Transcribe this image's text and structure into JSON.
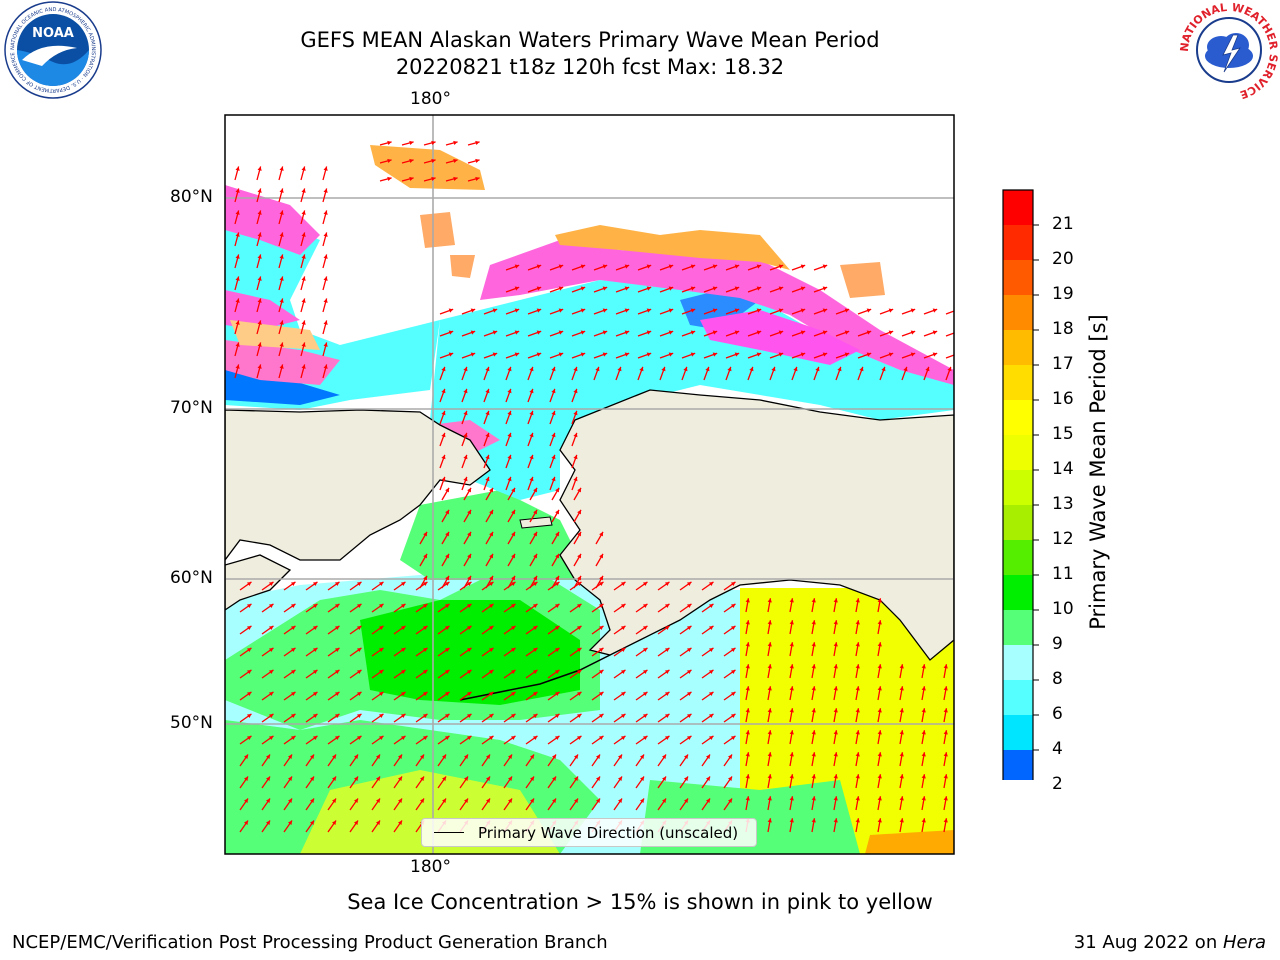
{
  "header": {
    "title_line1": "GEFS MEAN Alaskan Waters Primary Wave Mean Period",
    "title_line2": "20220821 t18z 120h fcst   Max: 18.32"
  },
  "logos": {
    "noaa_text": "NOAA",
    "noaa_ring": "NATIONAL OCEANIC AND ATMOSPHERIC ADMINISTRATION · U.S. DEPARTMENT OF COMMERCE",
    "nws_ring": "NATIONAL WEATHER SERVICE"
  },
  "map": {
    "lon_label_top": "180°",
    "lon_label_bottom": "180°",
    "lat_labels": [
      "80°N",
      "70°N",
      "60°N",
      "50°N"
    ],
    "colors": {
      "land": "#efedde",
      "arrow": "#ff0000",
      "ice_pink": "#ff66cc",
      "ice_orange": "#ffb347",
      "ice_magenta": "#ff44ee"
    }
  },
  "legend": {
    "label": "Primary Wave Direction (unscaled)"
  },
  "colorbar": {
    "title": "Primary Wave Mean Period [s]",
    "ticks": [
      "2",
      "4",
      "6",
      "8",
      "9",
      "10",
      "11",
      "12",
      "13",
      "14",
      "15",
      "16",
      "17",
      "18",
      "19",
      "20",
      "21"
    ],
    "colors": [
      "#0066ff",
      "#00e5ff",
      "#55ffff",
      "#a8ffff",
      "#55ff77",
      "#00ee00",
      "#55ee00",
      "#a8ee00",
      "#ccff00",
      "#eeff00",
      "#ffff00",
      "#ffdd00",
      "#ffbb00",
      "#ff8c00",
      "#ff5a00",
      "#ff2a00",
      "#ff0000"
    ],
    "extend_color": "#0000ff"
  },
  "caption": "Sea Ice Concentration > 15% is shown in pink to yellow",
  "footer": {
    "left": "NCEP/EMC/Verification Post Processing Product Generation Branch",
    "right_date": "31 Aug 2022 on ",
    "right_host": "Hera"
  }
}
